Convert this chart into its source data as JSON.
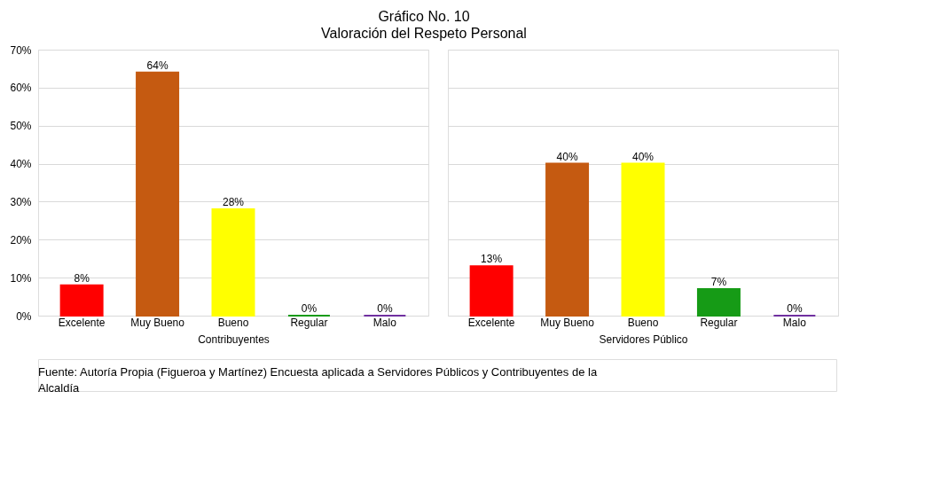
{
  "chart_data": [
    {
      "type": "bar",
      "title": "Gráfico No. 10",
      "subtitle": "Valoración del Respeto Personal",
      "xlabel": "Contribuyentes",
      "categories": [
        "Excelente",
        "Muy Bueno",
        "Bueno",
        "Regular",
        "Malo"
      ],
      "values": [
        8,
        64,
        28,
        0,
        0
      ],
      "colors": [
        "#ff0000",
        "#c55a11",
        "#ffff00",
        "#169b16",
        "#7030a0"
      ],
      "value_labels": [
        "8%",
        "64%",
        "28%",
        "0%",
        "0%"
      ],
      "ylim": [
        0,
        70
      ],
      "yticks": [
        {
          "value": 0,
          "label": "0%"
        },
        {
          "value": 10,
          "label": "10%"
        },
        {
          "value": 20,
          "label": "20%"
        },
        {
          "value": 30,
          "label": "30%"
        },
        {
          "value": 40,
          "label": "40%"
        },
        {
          "value": 50,
          "label": "50%"
        },
        {
          "value": 60,
          "label": "60%"
        },
        {
          "value": 70,
          "label": "70%"
        }
      ],
      "grid": "y"
    },
    {
      "type": "bar",
      "xlabel": "Servidores Público",
      "categories": [
        "Excelente",
        "Muy Bueno",
        "Bueno",
        "Regular",
        "Malo"
      ],
      "values": [
        13,
        40,
        40,
        7,
        0
      ],
      "colors": [
        "#ff0000",
        "#c55a11",
        "#ffff00",
        "#169b16",
        "#7030a0"
      ],
      "value_labels": [
        "13%",
        "40%",
        "40%",
        "7%",
        "0%"
      ],
      "ylim": [
        0,
        70
      ],
      "yticks": [
        0,
        10,
        20,
        30,
        40,
        50,
        60,
        70
      ],
      "grid": "y",
      "tick_labels": "x",
      "annotations": [
        "Fuente:  Autoría Propia (Figueroa y Martínez) Encuesta aplicada a Servidores Públicos y Contribuyentes de la Alcaldía"
      ]
    }
  ]
}
